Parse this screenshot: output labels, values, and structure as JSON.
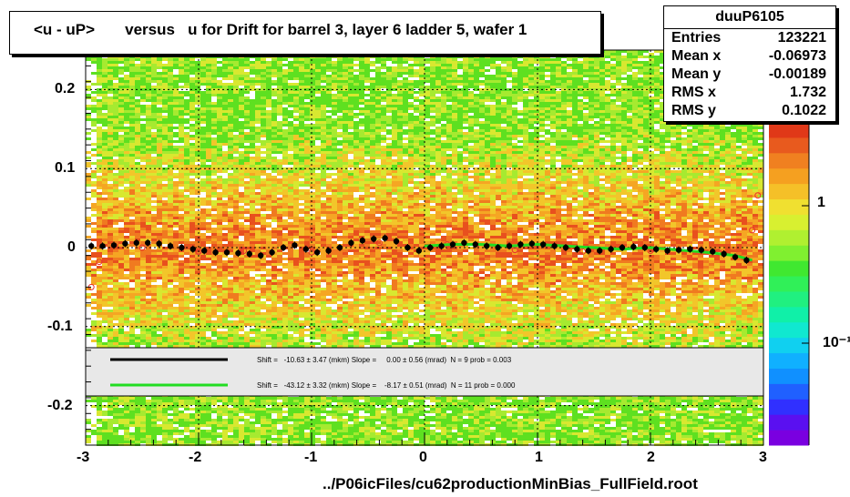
{
  "chart_data": {
    "type": "scatter",
    "title": "<u - uP>       versus   u for Drift for barrel 3, layer 6 ladder 5, wafer 1",
    "xlim": [
      -3,
      3
    ],
    "ylim": [
      -0.25,
      0.25
    ],
    "x_ticks": [
      "-3",
      "-2",
      "-1",
      "0",
      "1",
      "2",
      "3"
    ],
    "y_ticks": [
      "0.2",
      "0.1",
      "0",
      "-0.1",
      "-0.2"
    ],
    "z_scale": "log",
    "z_ticks": [
      "1",
      "10⁻¹"
    ],
    "background": "2D histogram (green-yellow-orange-red density) of u - uP versus u",
    "series": [
      {
        "color": "#000000",
        "x": [
          -2.95,
          -2.85,
          -2.75,
          -2.65,
          -2.55,
          -2.45,
          -2.35,
          -2.25,
          -2.15,
          -2.05,
          -1.95,
          -1.85,
          -1.75,
          -1.65,
          -1.55,
          -1.45,
          -1.35,
          -1.25,
          -1.15,
          -1.05,
          -0.95,
          -0.85,
          -0.75,
          -0.65,
          -0.55,
          -0.45,
          -0.35,
          -0.25,
          -0.15,
          -0.05,
          0.05,
          0.15,
          0.25,
          0.35,
          0.45,
          0.55,
          0.65,
          0.75,
          0.85,
          0.95,
          1.05,
          1.15,
          1.25,
          1.35,
          1.45,
          1.55,
          1.65,
          1.75,
          1.85,
          1.95,
          2.05,
          2.15,
          2.25,
          2.35,
          2.45,
          2.55,
          2.65,
          2.75,
          2.85
        ],
        "y": [
          0.002,
          0.002,
          0.003,
          0.005,
          0.006,
          0.006,
          0.005,
          0.002,
          0.0,
          -0.002,
          -0.004,
          -0.006,
          -0.006,
          -0.007,
          -0.008,
          -0.01,
          -0.006,
          0.0,
          0.003,
          -0.002,
          -0.006,
          -0.004,
          0.0,
          0.006,
          0.009,
          0.011,
          0.012,
          0.008,
          0.0,
          -0.004,
          0.0,
          0.002,
          0.004,
          0.006,
          0.004,
          0.002,
          0.0,
          0.002,
          0.004,
          0.005,
          0.004,
          0.002,
          0.0,
          -0.002,
          -0.004,
          -0.004,
          -0.002,
          0.0,
          0.001,
          0.0,
          -0.002,
          -0.004,
          -0.003,
          -0.002,
          -0.003,
          -0.005,
          -0.008,
          -0.012,
          -0.016
        ]
      },
      {
        "color": "#e83030",
        "x": [
          -2.95,
          -2.88,
          -2.5,
          -2.0,
          -1.6,
          -1.0,
          -0.4,
          0.2,
          0.8,
          1.4,
          2.0,
          2.6,
          2.9,
          2.95
        ],
        "y": [
          -0.05,
          -0.018,
          0.0,
          -0.005,
          -0.004,
          -0.006,
          0.006,
          0.004,
          -0.003,
          -0.005,
          -0.004,
          -0.006,
          0.022,
          0.066
        ]
      }
    ],
    "fit_lines": [
      {
        "color": "#000000",
        "text": "Shift =   -10.63 ± 3.47 (mkm) Slope =     0.00 ± 0.56 (mrad)  N = 9 prob = 0.003"
      },
      {
        "color": "#22dd22",
        "text": "Shift =   -43.12 ± 3.32 (mkm) Slope =    -8.17 ± 0.51 (mrad)  N = 11 prob = 0.000"
      }
    ],
    "green_fit": {
      "x": [
        0.0,
        0.25,
        0.5,
        0.75,
        1.0,
        1.25,
        1.5,
        1.75,
        2.0,
        2.25,
        2.5,
        2.75,
        2.9
      ],
      "y": [
        0.002,
        0.004,
        0.004,
        0.002,
        0.004,
        0.002,
        0.0,
        -0.002,
        0.0,
        -0.003,
        -0.006,
        -0.01,
        -0.016
      ]
    },
    "stats": {
      "name": "duuP6105",
      "rows": [
        {
          "label": "Entries",
          "value": "123221"
        },
        {
          "label": "Mean x",
          "value": "-0.06973"
        },
        {
          "label": "Mean y",
          "value": "-0.00189"
        },
        {
          "label": "RMS x",
          "value": "1.732"
        },
        {
          "label": "RMS y",
          "value": "0.1022"
        }
      ]
    },
    "footer": "../P06icFiles/cu62productionMinBias_FullField.root"
  }
}
